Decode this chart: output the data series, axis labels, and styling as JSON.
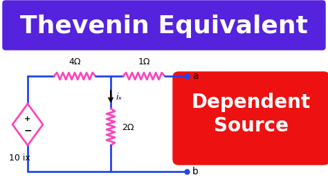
{
  "bg_color": "#ffffff",
  "title_text": "Thevenin Equivalent",
  "title_bg": "#5522dd",
  "title_fg": "#ffffff",
  "red_box_bg": "#ee1111",
  "red_box_fg": "#ffffff",
  "red_box_line1": "Dependent",
  "red_box_line2": "Source",
  "circuit_color": "#2244ee",
  "pink_color": "#ff44bb",
  "label_4ohm": "4Ω",
  "label_1ohm": "1Ω",
  "label_2ohm": "2Ω",
  "label_ix": "ix",
  "label_10ix": "10 ix",
  "label_a": "a",
  "label_b": "b"
}
